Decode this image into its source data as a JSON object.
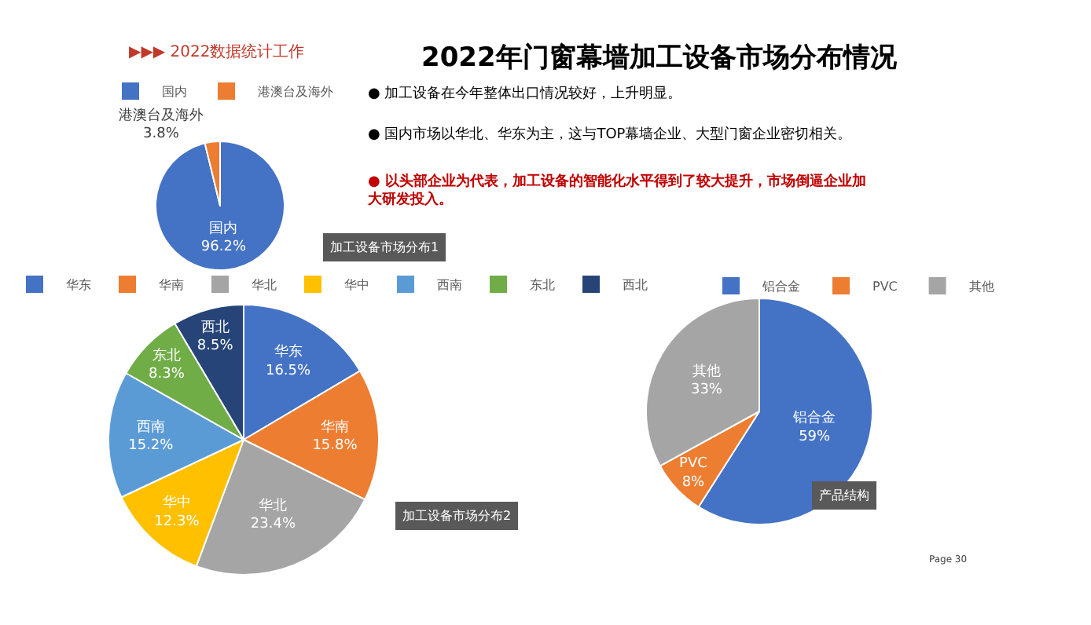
{
  "chart_data": [
    {
      "type": "pie",
      "title": "2022年门窗幕墙加工设备市场分布情况",
      "categories": [
        "国内",
        "港澳台及海外"
      ],
      "values": [
        96.2,
        3.8
      ],
      "value_labels": [
        "96.2%",
        "3.8%"
      ],
      "colors": [
        "#4472c4",
        "#ed7d31"
      ],
      "legend": "top",
      "annotations": [
        "▶▶▶ 2022数据统计工作",
        "● 加工设备在今年整体出口情况较好，上升明显。",
        "● 国内市场以华北、华东为主，这与TOP幕墙企业、大型门窗企业密切相关。",
        "● 以头部企业为代表，加工设备的智能化水平得到了较大提升，市场倒逼企业加大研发投入。",
        "加工设备市场分布1"
      ]
    },
    {
      "type": "pie",
      "categories": [
        "华东",
        "华南",
        "华北",
        "华中",
        "西南",
        "东北",
        "西北"
      ],
      "values": [
        16.5,
        15.8,
        23.4,
        12.3,
        15.2,
        8.3,
        8.5
      ],
      "value_labels": [
        "16.5%",
        "15.8%",
        "23.4%",
        "12.3%",
        "15.2%",
        "8.3%",
        "8.5%"
      ],
      "colors": [
        "#4472c4",
        "#ed7d31",
        "#a5a5a5",
        "#ffc000",
        "#5b9bd5",
        "#70ad47",
        "#264478"
      ],
      "legend": "top",
      "annotations": [
        "加工设备市场分布2"
      ]
    },
    {
      "type": "pie",
      "categories": [
        "铝合金",
        "PVC",
        "其他"
      ],
      "values": [
        59,
        8,
        33
      ],
      "value_labels": [
        "59%",
        "8%",
        "33%"
      ],
      "colors": [
        "#4472c4",
        "#ed7d31",
        "#a5a5a5"
      ],
      "legend": "top",
      "annotations": [
        "产品结构",
        "Page 30"
      ]
    }
  ]
}
